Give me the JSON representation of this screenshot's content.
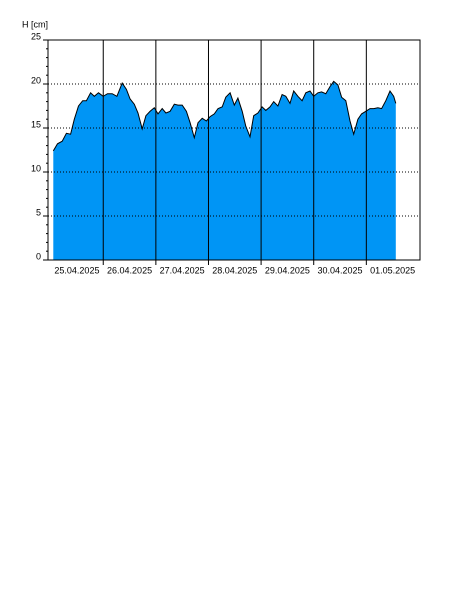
{
  "chart_data": {
    "type": "area",
    "y_label": "H [cm]",
    "x": [
      0.05,
      0.13,
      0.22,
      0.3,
      0.38,
      0.45,
      0.53,
      0.61,
      0.68,
      0.76,
      0.83,
      0.91,
      1.0,
      1.08,
      1.17,
      1.26,
      1.36,
      1.44,
      1.51,
      1.59,
      1.66,
      1.74,
      1.81,
      1.89,
      1.97,
      2.04,
      2.12,
      2.19,
      2.27,
      2.35,
      2.42,
      2.5,
      2.58,
      2.65,
      2.73,
      2.8,
      2.88,
      2.96,
      3.03,
      3.11,
      3.18,
      3.26,
      3.33,
      3.41,
      3.49,
      3.56,
      3.64,
      3.71,
      3.79,
      3.86,
      3.94,
      4.02,
      4.09,
      4.17,
      4.24,
      4.32,
      4.4,
      4.47,
      4.55,
      4.62,
      4.7,
      4.78,
      4.85,
      4.93,
      5.0,
      5.08,
      5.15,
      5.23,
      5.31,
      5.38,
      5.46,
      5.53,
      5.61,
      5.69,
      5.76,
      5.84,
      5.91,
      5.99,
      6.07,
      6.14,
      6.22,
      6.29,
      6.37,
      6.45,
      6.52,
      6.56
    ],
    "values": [
      12.4,
      13.2,
      13.5,
      14.4,
      14.3,
      16.0,
      17.5,
      18.1,
      18.1,
      19.0,
      18.6,
      19.0,
      18.6,
      18.9,
      18.9,
      18.6,
      20.1,
      19.4,
      18.3,
      17.7,
      16.7,
      14.9,
      16.4,
      16.9,
      17.3,
      16.6,
      17.2,
      16.7,
      16.9,
      17.7,
      17.6,
      17.6,
      16.9,
      15.6,
      13.9,
      15.6,
      16.1,
      15.8,
      16.3,
      16.6,
      17.2,
      17.4,
      18.5,
      19.0,
      17.6,
      18.4,
      16.9,
      15.2,
      14.0,
      16.4,
      16.7,
      17.4,
      17.0,
      17.4,
      18.0,
      17.5,
      18.8,
      18.6,
      17.8,
      19.2,
      18.6,
      18.1,
      19.0,
      19.2,
      18.6,
      19.0,
      19.1,
      18.9,
      19.7,
      20.3,
      19.9,
      18.5,
      18.1,
      15.8,
      14.3,
      16.0,
      16.6,
      16.9,
      17.2,
      17.2,
      17.3,
      17.2,
      18.1,
      19.2,
      18.6,
      17.8
    ],
    "color": "#0095f5",
    "line_color": "#000000",
    "xlim": [
      -0.05,
      7.02
    ],
    "xticks": [
      {
        "value": 0.5,
        "label": "25.04.2025"
      },
      {
        "value": 1.5,
        "label": "26.04.2025"
      },
      {
        "value": 2.5,
        "label": "27.04.2025"
      },
      {
        "value": 3.5,
        "label": "28.04.2025"
      },
      {
        "value": 4.5,
        "label": "29.04.2025"
      },
      {
        "value": 5.5,
        "label": "30.04.2025"
      },
      {
        "value": 6.5,
        "label": "01.05.2025"
      }
    ],
    "xgrid": [
      1,
      2,
      3,
      4,
      5,
      6
    ],
    "ylim": [
      0,
      25
    ],
    "yticks": [
      0,
      5,
      10,
      15,
      20,
      25
    ],
    "y_minor_step": 1,
    "grid": true
  }
}
